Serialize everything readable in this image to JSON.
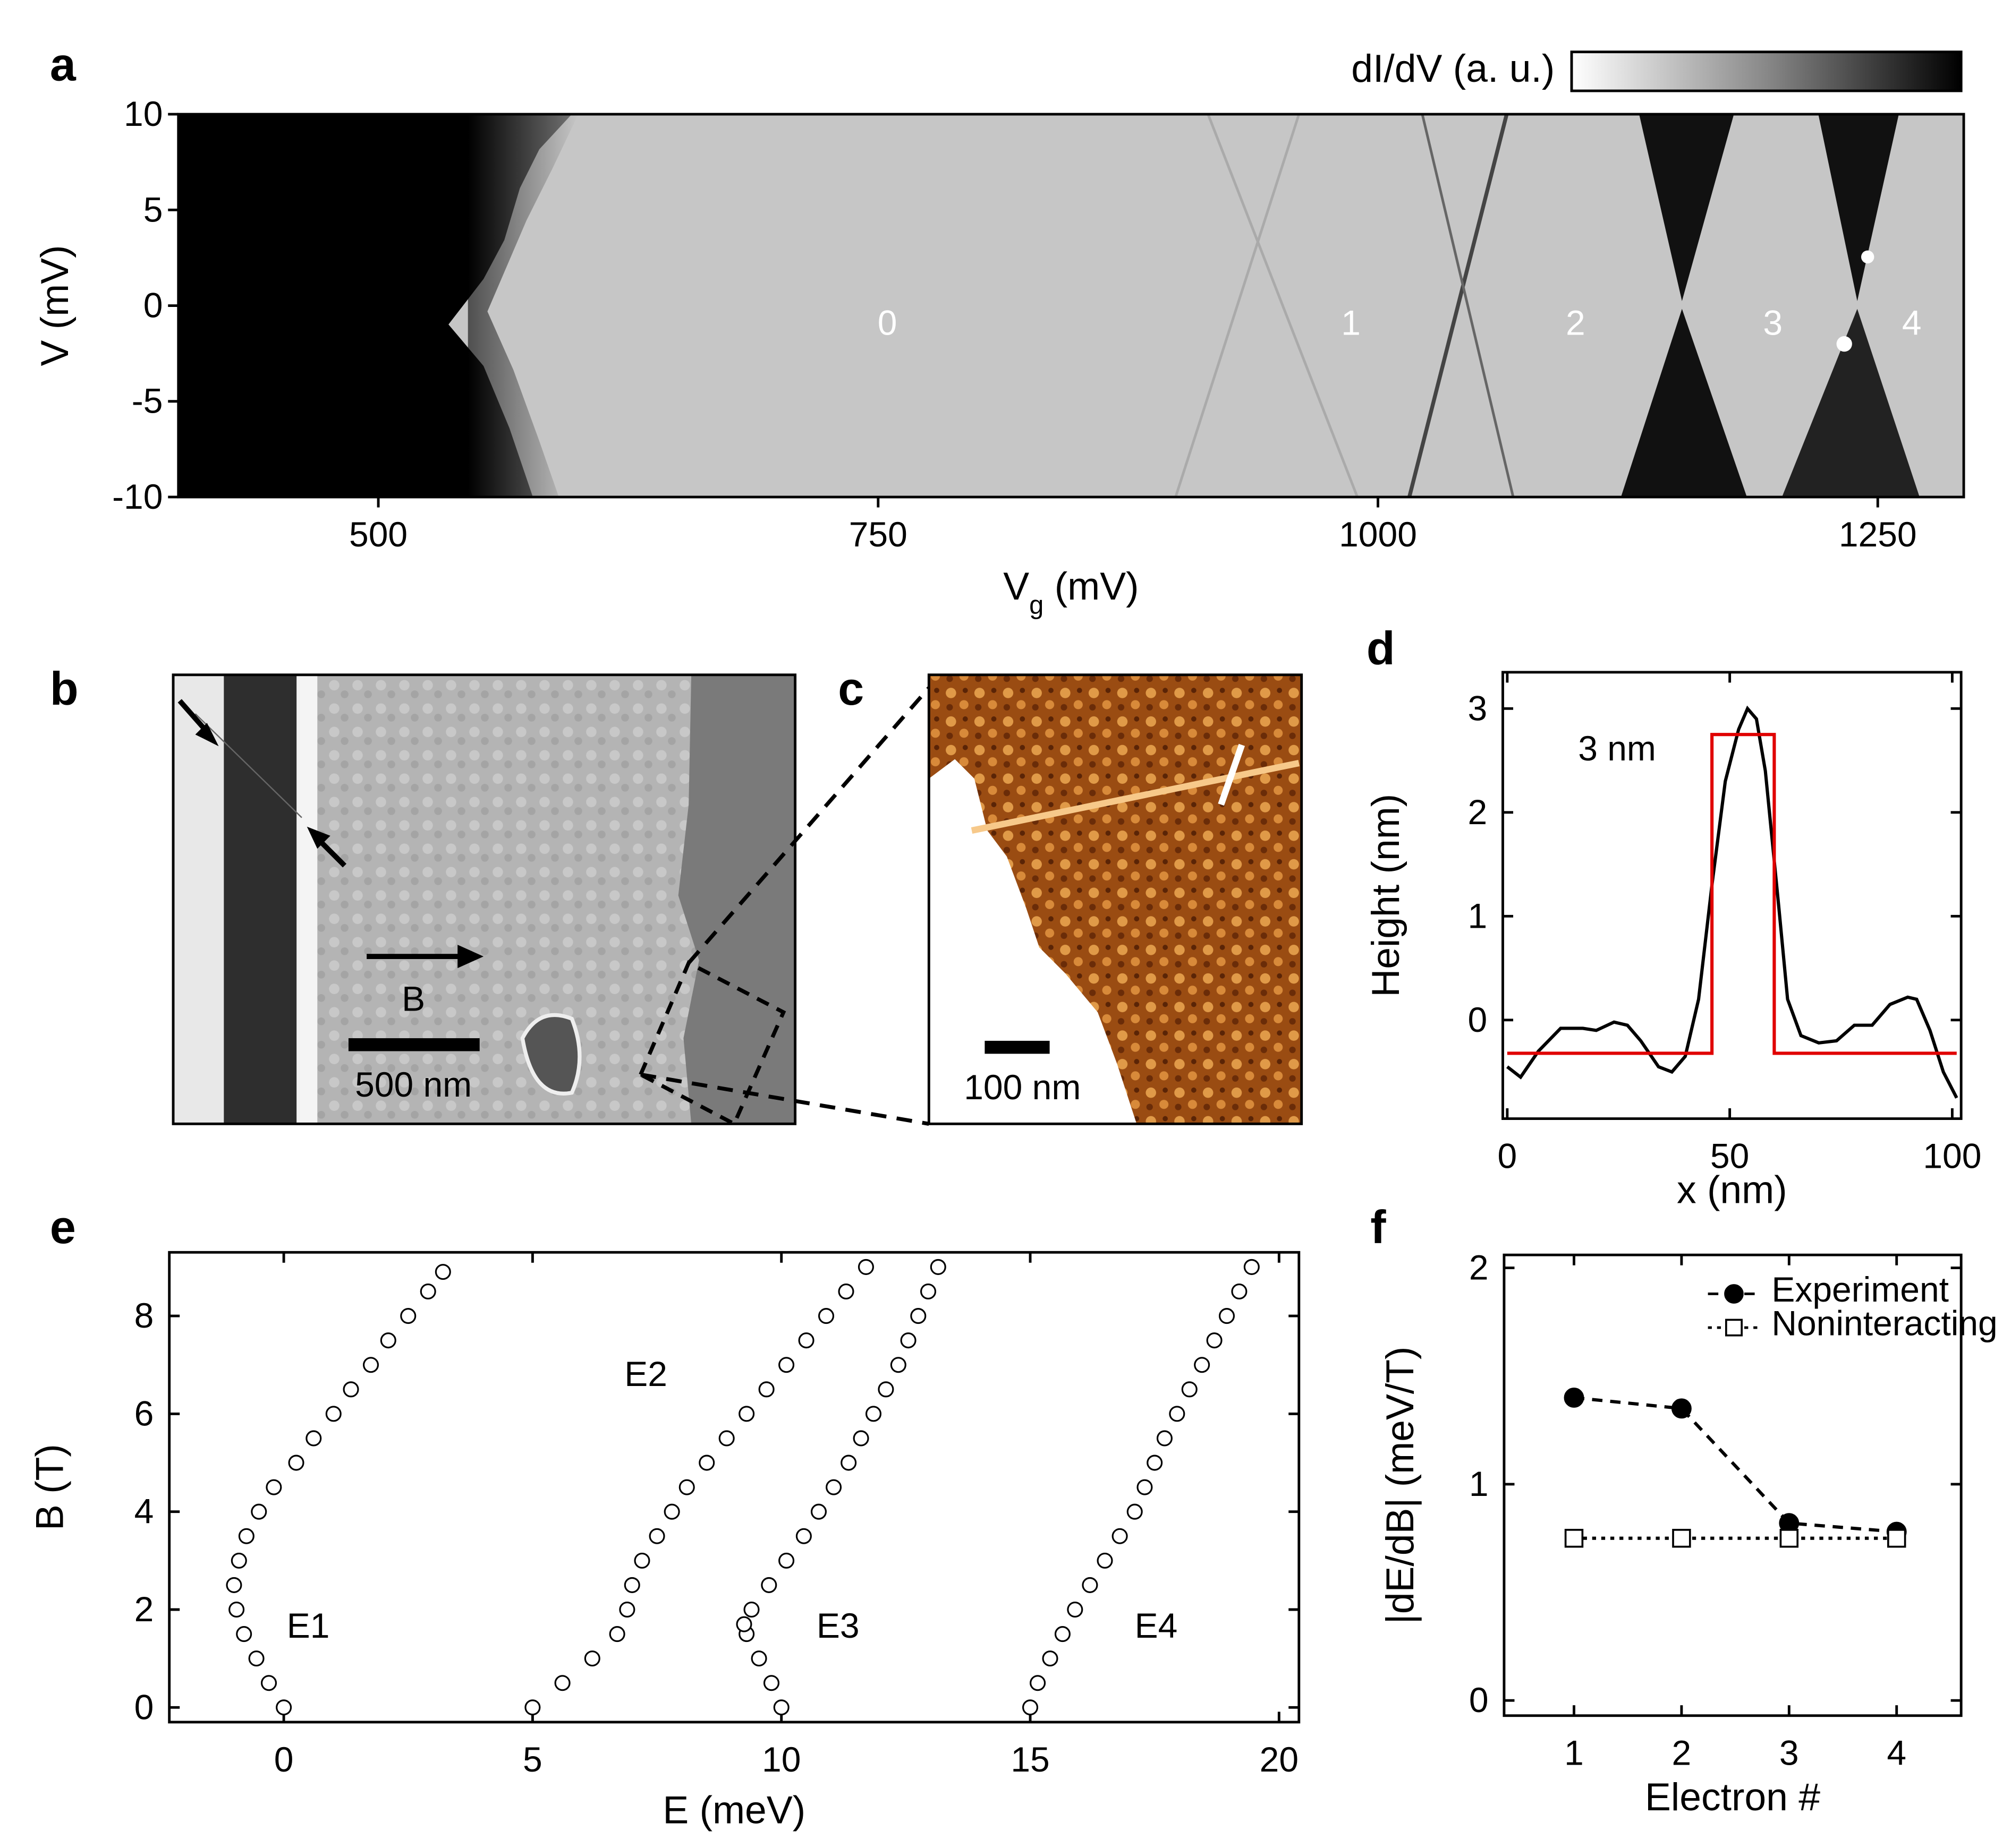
{
  "chart_data": [
    {
      "panel": "a",
      "type": "heatmap",
      "xlabel": [
        "V",
        "g",
        " (mV)"
      ],
      "ylabel": "V (mV)",
      "xlim": [
        400,
        1293
      ],
      "ylim": [
        -10,
        10
      ],
      "xticks": [
        500,
        750,
        1000,
        1250
      ],
      "yticks": [
        10,
        5,
        0,
        -5,
        -10
      ],
      "colorbar_label": "dI/dV (a. u.)",
      "annotations": [
        "0",
        "1",
        "2",
        "3",
        "4"
      ]
    },
    {
      "panel": "d",
      "type": "line",
      "xlabel": "x (nm)",
      "ylabel": "Height (nm)",
      "xlim": [
        -1,
        102
      ],
      "ylim": [
        -0.95,
        3.35
      ],
      "xticks": [
        0,
        50,
        100
      ],
      "yticks": [
        0,
        1,
        2,
        3
      ],
      "annotation": "3 nm",
      "series": [
        {
          "color": "#000000",
          "x": [
            0,
            3,
            7,
            12,
            17,
            20,
            24,
            27,
            30,
            34,
            37,
            40,
            43,
            46,
            49,
            52,
            54,
            56,
            58,
            61,
            63,
            66,
            70,
            74,
            78,
            82,
            86,
            90,
            92,
            95,
            98,
            101
          ],
          "values": [
            -0.45,
            -0.55,
            -0.3,
            -0.08,
            -0.08,
            -0.1,
            -0.02,
            -0.05,
            -0.2,
            -0.45,
            -0.5,
            -0.35,
            0.2,
            1.3,
            2.3,
            2.8,
            3.0,
            2.9,
            2.4,
            1.1,
            0.2,
            -0.15,
            -0.22,
            -0.2,
            -0.05,
            -0.05,
            0.15,
            0.22,
            0.2,
            -0.1,
            -0.5,
            -0.75
          ]
        },
        {
          "color": "#e00000",
          "x": [
            0,
            46,
            46,
            60,
            60,
            101
          ],
          "values": [
            -0.32,
            -0.32,
            2.75,
            2.75,
            -0.32,
            -0.32
          ]
        }
      ]
    },
    {
      "panel": "e",
      "type": "scatter",
      "xlabel": "E (meV)",
      "ylabel": "B (T)",
      "xlim": [
        -2.3,
        20.4
      ],
      "ylim": [
        -0.3,
        9.3
      ],
      "xticks": [
        0,
        5,
        10,
        15,
        20
      ],
      "yticks": [
        0,
        2,
        4,
        6,
        8
      ],
      "series": [
        {
          "name": "E1",
          "x": [
            0,
            -0.3,
            -0.55,
            -0.8,
            -0.95,
            -1.0,
            -0.9,
            -0.75,
            -0.5,
            -0.2,
            0.25,
            0.6,
            1.0,
            1.35,
            1.75,
            2.1,
            2.5,
            2.9,
            3.2
          ],
          "values": [
            0,
            0.5,
            1,
            1.5,
            2,
            2.5,
            3,
            3.5,
            4,
            4.5,
            5,
            5.5,
            6,
            6.5,
            7,
            7.5,
            8,
            8.5,
            8.9
          ]
        },
        {
          "name": "E2",
          "x": [
            5.0,
            5.6,
            6.2,
            6.7,
            6.9,
            7.0,
            7.2,
            7.5,
            7.8,
            8.1,
            8.5,
            8.9,
            9.3,
            9.7,
            10.1,
            10.5,
            10.9,
            11.3,
            11.7
          ],
          "values": [
            0,
            0.5,
            1,
            1.5,
            2,
            2.5,
            3,
            3.5,
            4,
            4.5,
            5,
            5.5,
            6,
            6.5,
            7,
            7.5,
            8,
            8.5,
            9
          ]
        },
        {
          "name": "E3",
          "x": [
            10.0,
            9.8,
            9.55,
            9.3,
            9.25,
            9.4,
            9.75,
            10.1,
            10.45,
            10.75,
            11.05,
            11.35,
            11.6,
            11.85,
            12.1,
            12.35,
            12.55,
            12.75,
            12.95,
            13.15
          ],
          "values": [
            0,
            0.5,
            1,
            1.5,
            1.7,
            2,
            2.5,
            3,
            3.5,
            4,
            4.5,
            5,
            5.5,
            6,
            6.5,
            7,
            7.5,
            8,
            8.5,
            9
          ]
        },
        {
          "name": "E4",
          "x": [
            15.0,
            15.15,
            15.4,
            15.65,
            15.9,
            16.2,
            16.5,
            16.8,
            17.1,
            17.3,
            17.5,
            17.7,
            17.95,
            18.2,
            18.45,
            18.7,
            18.95,
            19.2,
            19.45
          ],
          "values": [
            0,
            0.5,
            1,
            1.5,
            2,
            2.5,
            3,
            3.5,
            4,
            4.5,
            5,
            5.5,
            6,
            6.5,
            7,
            7.5,
            8,
            8.5,
            9
          ]
        }
      ]
    },
    {
      "panel": "f",
      "type": "line",
      "xlabel": "Electron #",
      "ylabel": "|dE/dB| (meV/T)",
      "xlim": [
        0.35,
        4.6
      ],
      "ylim": [
        -0.07,
        2.06
      ],
      "xticks": [
        1,
        2,
        3,
        4
      ],
      "yticks": [
        0,
        1,
        2
      ],
      "legend": "upper right",
      "series": [
        {
          "name": "Experiment",
          "marker": "circle",
          "filled": true,
          "linestyle": "dashed",
          "color": "#000000",
          "x": [
            1,
            2,
            3,
            4
          ],
          "values": [
            1.4,
            1.35,
            0.82,
            0.78
          ]
        },
        {
          "name": "Noninteracting",
          "marker": "square",
          "filled": false,
          "linestyle": "dotted",
          "color": "#000000",
          "x": [
            1,
            2,
            3,
            4
          ],
          "values": [
            0.75,
            0.75,
            0.75,
            0.75
          ]
        }
      ]
    }
  ],
  "images": [
    {
      "panel": "b",
      "scale_bar": "500 nm",
      "arrow_label": "B"
    },
    {
      "panel": "c",
      "scale_bar": "100 nm"
    }
  ]
}
